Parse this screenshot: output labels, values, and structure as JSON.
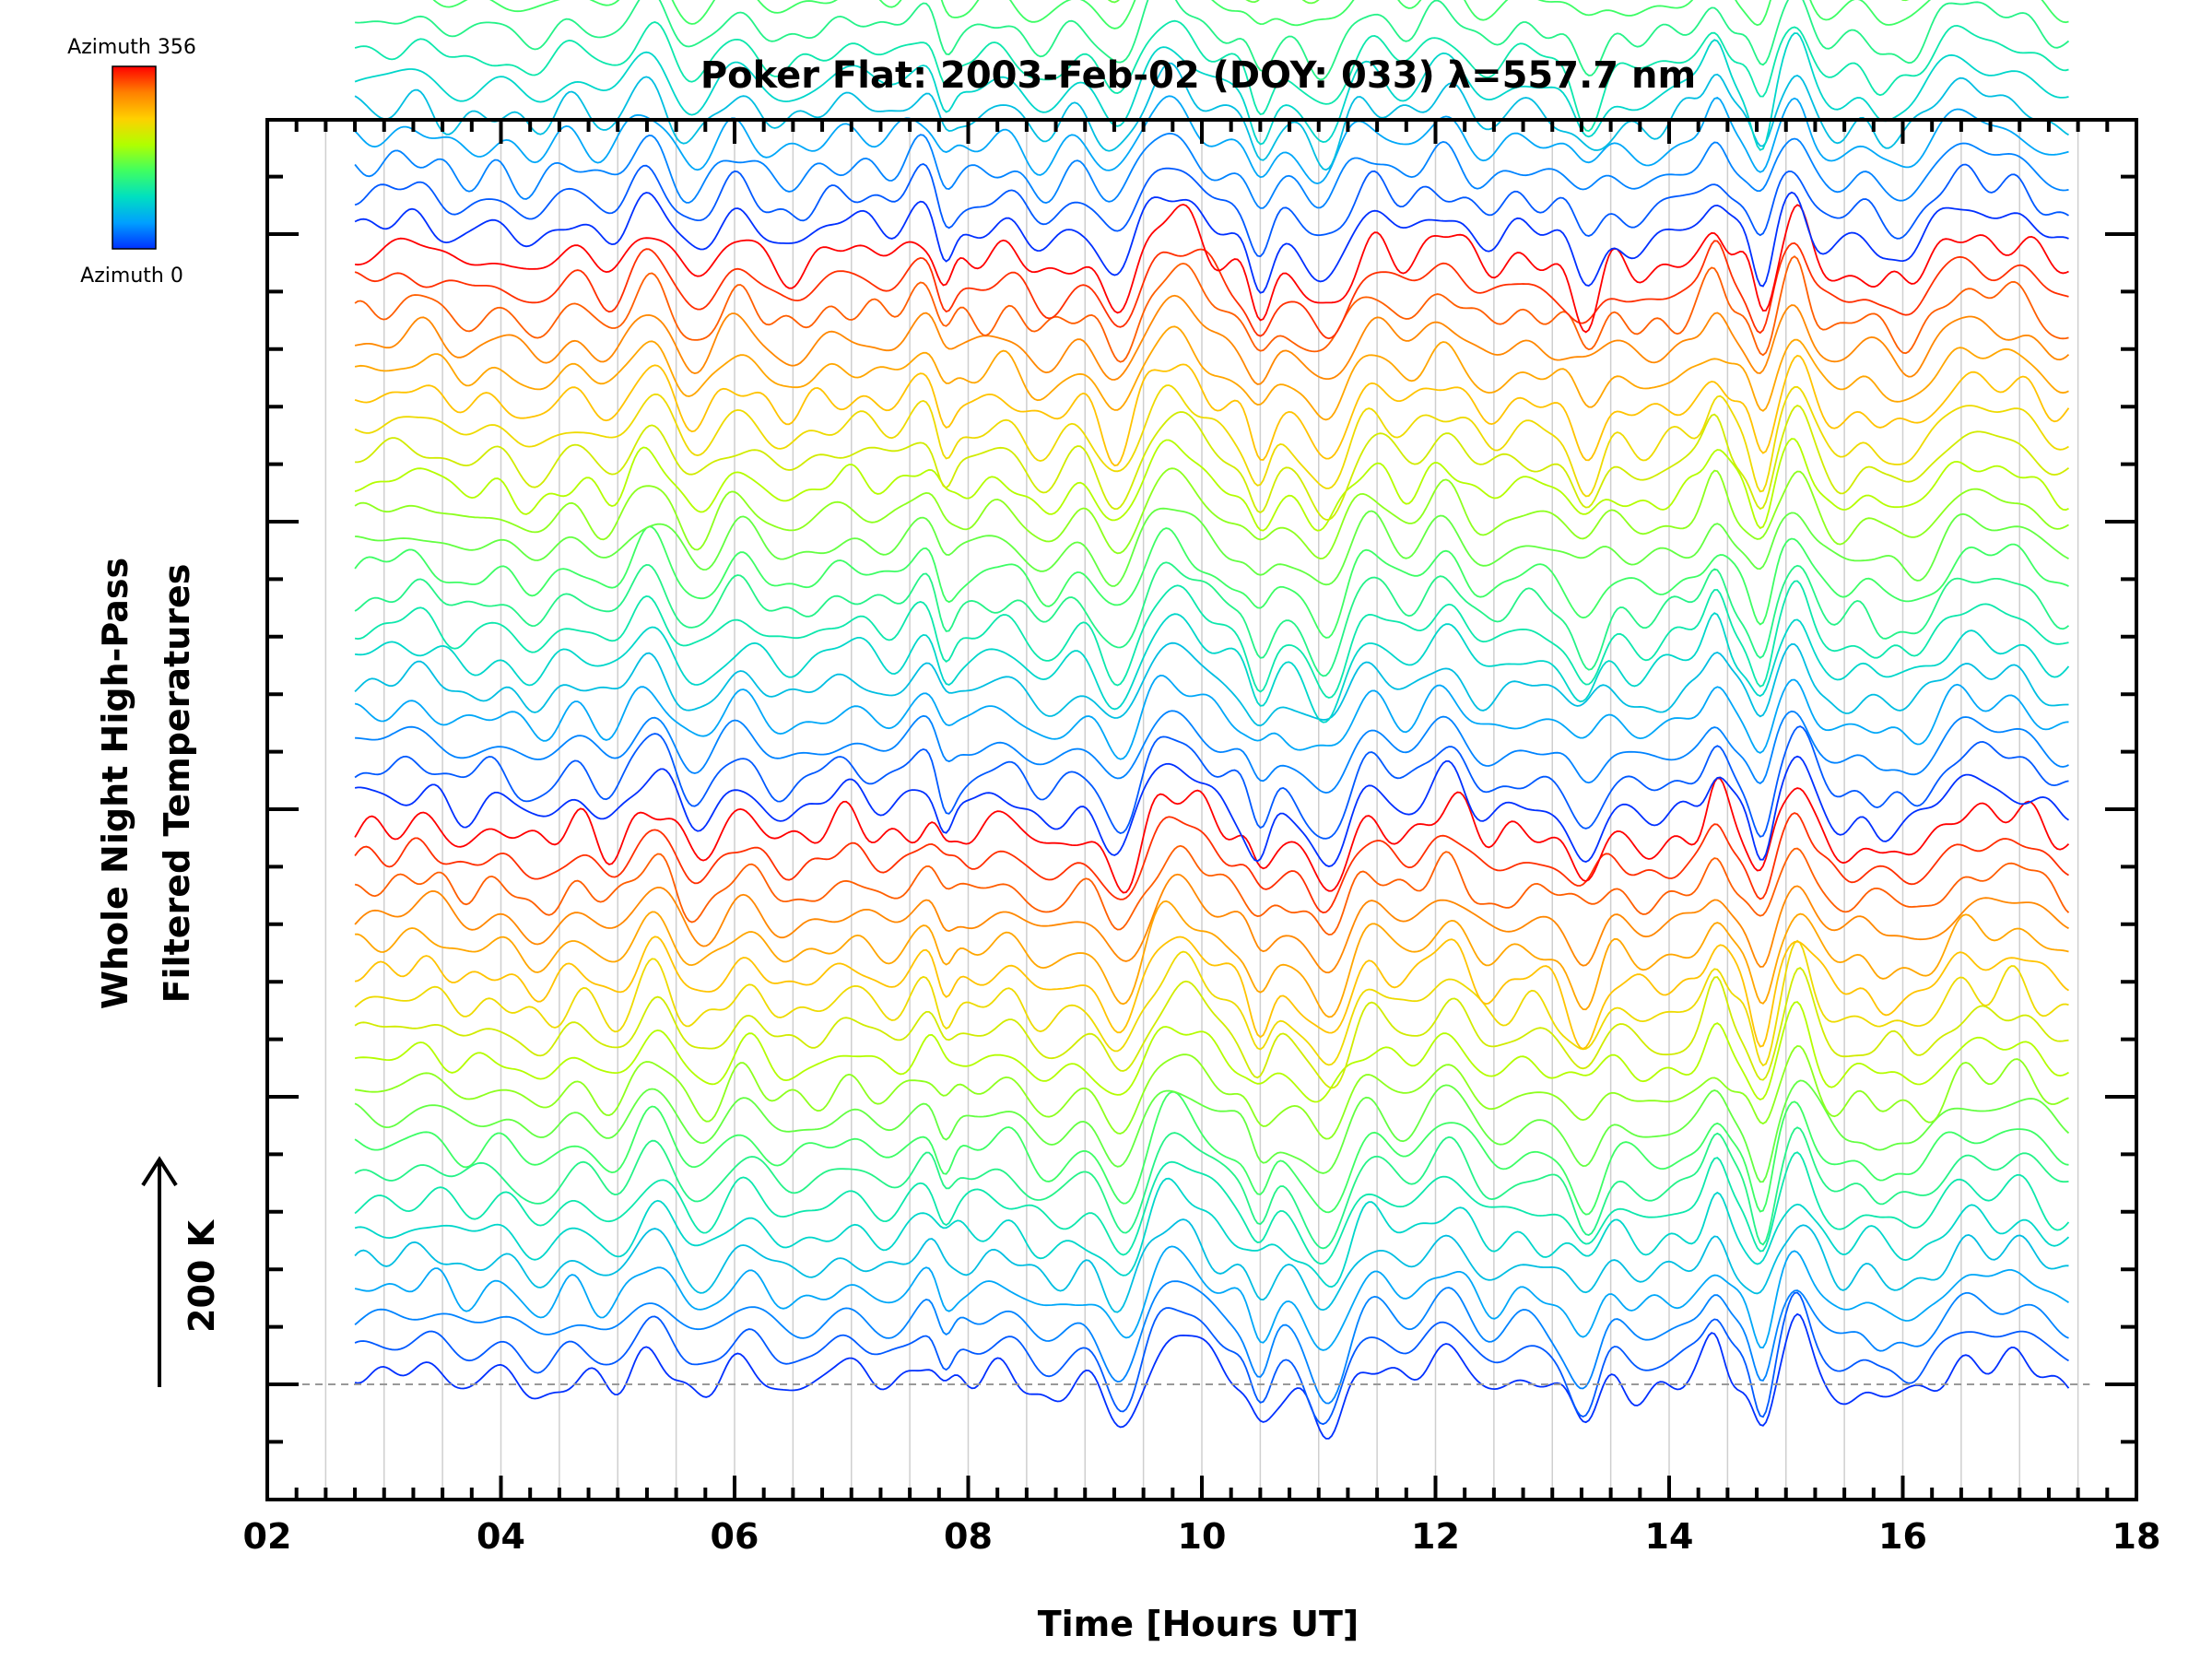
{
  "chart_data": {
    "type": "line",
    "title": "Poker Flat: 2003-Feb-02 (DOY: 033) λ=557.7 nm",
    "xlabel": "Time [Hours UT]",
    "ylabel_line1": "Whole Night High-Pass",
    "ylabel_line2": "Filtered Temperatures",
    "scale_label": "200 K",
    "colorbar": {
      "top_label": "Azimuth 356",
      "bottom_label": "Azimuth 0",
      "colors": [
        "#ff0000",
        "#ff8000",
        "#ffd000",
        "#b0ff00",
        "#40ff60",
        "#00e0c0",
        "#00a0ff",
        "#0030ff"
      ]
    },
    "xlim": [
      2,
      18
    ],
    "x_tick_labels": [
      "02",
      "04",
      "06",
      "08",
      "10",
      "12",
      "14",
      "16",
      "18"
    ],
    "x_tick_values": [
      2,
      4,
      6,
      8,
      10,
      12,
      14,
      16,
      18
    ],
    "x_start": 2.75,
    "x_end": 17.42,
    "n_series": 100,
    "n_groups": 5,
    "series_per_group": 20,
    "series_spacing_k": 25,
    "baseline_dashed": true,
    "grid": "vertical",
    "colors": {
      "axis": "#000000",
      "grid": "#cfcfcf",
      "baseline": "#999999"
    }
  }
}
